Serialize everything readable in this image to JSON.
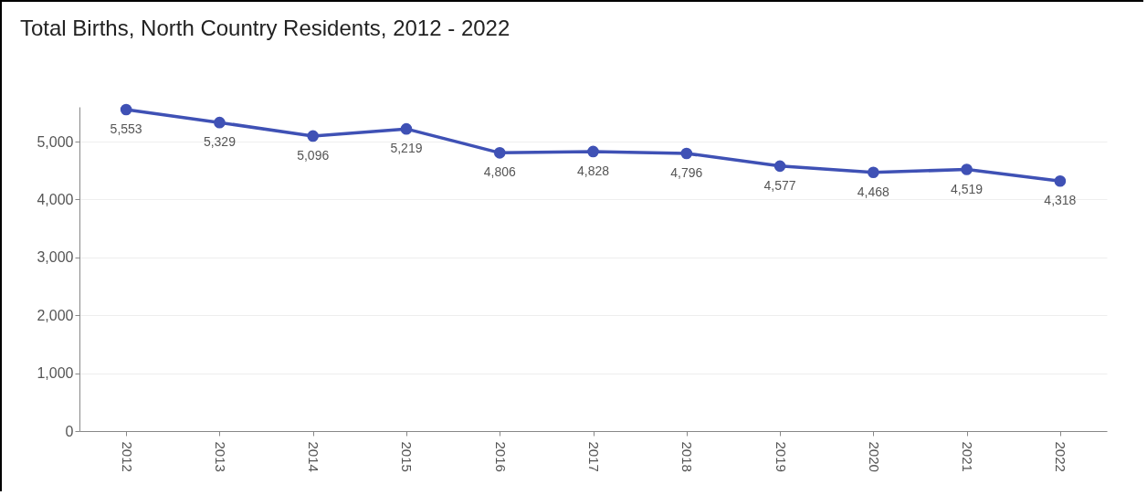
{
  "chart_data": {
    "type": "line",
    "title": "Total Births, North Country Residents, 2012 - 2022",
    "categories": [
      "2012",
      "2013",
      "2014",
      "2015",
      "2016",
      "2017",
      "2018",
      "2019",
      "2020",
      "2021",
      "2022"
    ],
    "series": [
      {
        "color": "#3f51b5",
        "values": [
          5553,
          5329,
          5096,
          5219,
          4806,
          4828,
          4796,
          4577,
          4468,
          4519,
          4318
        ],
        "value_labels": [
          "5,553",
          "5,329",
          "5,096",
          "5,219",
          "4,806",
          "4,828",
          "4,796",
          "4,577",
          "4,468",
          "4,519",
          "4,318"
        ]
      }
    ],
    "ylim": [
      0,
      5600
    ],
    "yticks": [
      0,
      {
        "value": 1000,
        "label": "1,000"
      },
      {
        "value": 2000,
        "label": "2,000"
      },
      {
        "value": 3000,
        "label": "3,000"
      },
      {
        "value": 4000,
        "label": "4,000"
      },
      {
        "value": 5000,
        "label": "5,000"
      }
    ],
    "grid": "y",
    "marker": "circle",
    "line_style": "solid",
    "legend": false
  }
}
